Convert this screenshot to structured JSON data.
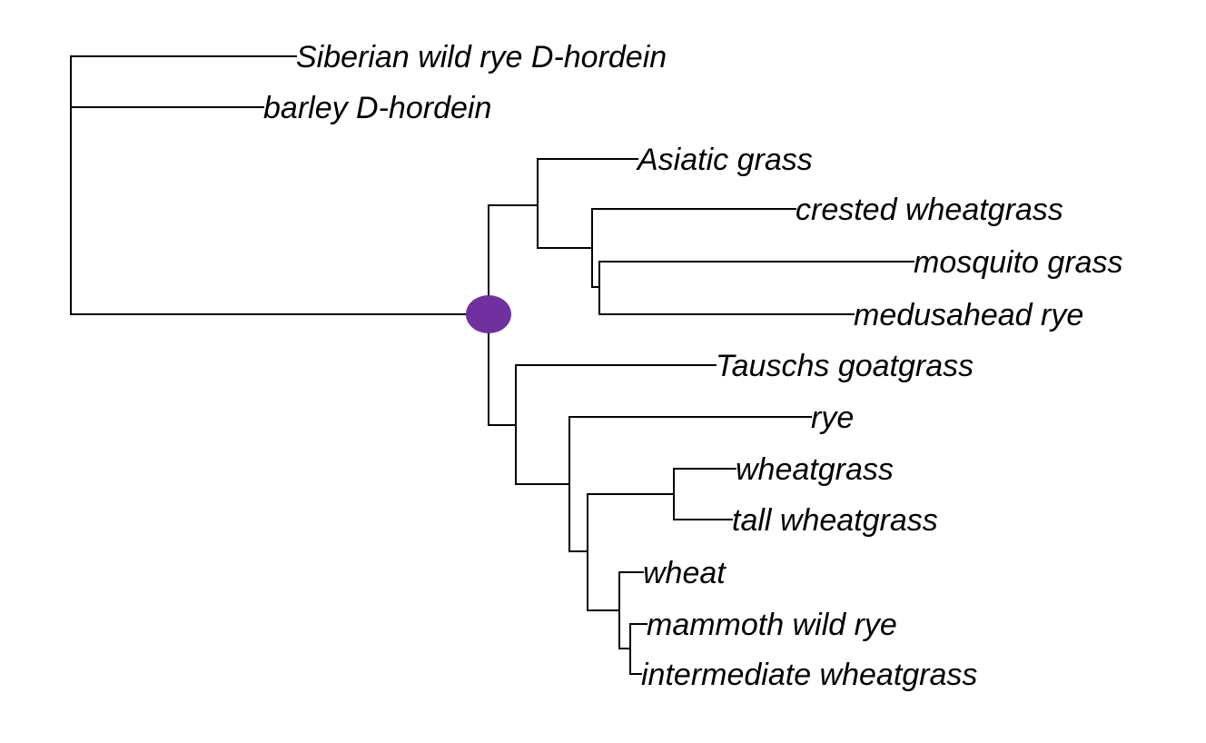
{
  "tree": {
    "tips": [
      "Siberian wild rye D-hordein",
      "barley D-hordein",
      "Asiatic grass",
      "crested wheatgrass",
      "mosquito grass",
      "medusahead rye",
      "Tauschs goatgrass",
      "rye",
      "wheatgrass",
      "tall wheatgrass",
      "wheat",
      "mammoth wild rye",
      "intermediate wheatgrass"
    ],
    "highlighted_node_color": "#7030a0",
    "line_color": "#000000"
  }
}
